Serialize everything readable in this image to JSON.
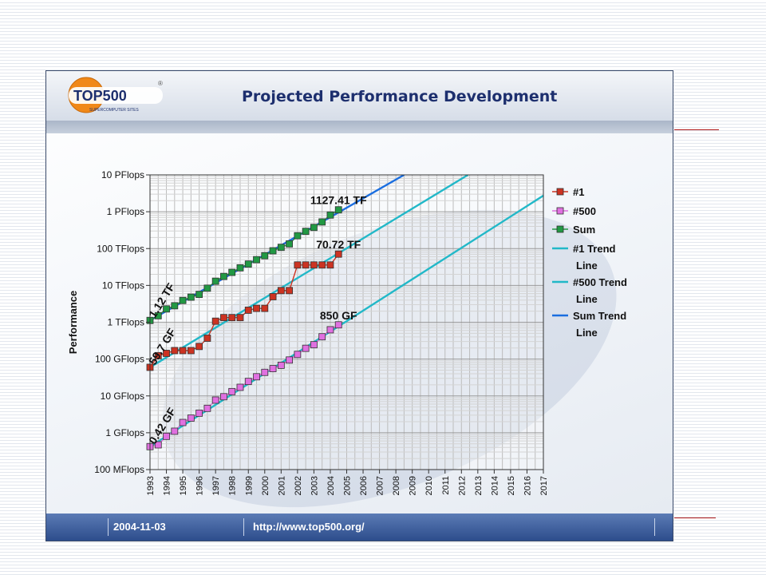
{
  "header": {
    "title": "Projected Performance Development",
    "logo_text": "TOP500",
    "logo_subtext": "SUPERCOMPUTER SITES",
    "logo_mark": "®"
  },
  "footer": {
    "date": "2004-11-03",
    "url": "http://www.top500.org/"
  },
  "colors": {
    "n1": "#cc3322",
    "n500": "#e070e0",
    "sum": "#229944",
    "trend_n1": "#22b8c8",
    "trend_n500": "#22b8c8",
    "trend_sum": "#1a6ee0",
    "logo_orange": "#f08818",
    "logo_ink": "#1d2f6e"
  },
  "chart_data": {
    "type": "line",
    "title": "",
    "xlabel": "",
    "ylabel": "Performance",
    "y_scale": "log",
    "ylim_gflops": [
      0.1,
      10000000
    ],
    "xlim": [
      1993,
      2017
    ],
    "y_ticks": [
      {
        "value_gflops": 10000000,
        "label": "10 PFlops"
      },
      {
        "value_gflops": 1000000,
        "label": "1 PFlops"
      },
      {
        "value_gflops": 100000,
        "label": "100 TFlops"
      },
      {
        "value_gflops": 10000,
        "label": "10 TFlops"
      },
      {
        "value_gflops": 1000,
        "label": "1 TFlops"
      },
      {
        "value_gflops": 100,
        "label": "100 GFlops"
      },
      {
        "value_gflops": 10,
        "label": "10 GFlops"
      },
      {
        "value_gflops": 1,
        "label": "1 GFlops"
      },
      {
        "value_gflops": 0.1,
        "label": "100 MFlops"
      }
    ],
    "x_ticks": [
      "1993",
      "1994",
      "1995",
      "1996",
      "1997",
      "1998",
      "1999",
      "2000",
      "2001",
      "2002",
      "2003",
      "2004",
      "2005",
      "2006",
      "2007",
      "2008",
      "2009",
      "2010",
      "2011",
      "2012",
      "2013",
      "2014",
      "2015",
      "2016",
      "2017"
    ],
    "grid": true,
    "legend_placement": "right",
    "legend": [
      "#1",
      "#500",
      "Sum",
      "#1 Trend Line",
      "#500 Trend Line",
      "Sum Trend Line"
    ],
    "series": [
      {
        "name": "#1",
        "color_key": "n1",
        "x": [
          1993,
          1993.5,
          1994,
          1994.5,
          1995,
          1995.5,
          1996,
          1996.5,
          1997,
          1997.5,
          1998,
          1998.5,
          1999,
          1999.5,
          2000,
          2000.5,
          2001,
          2001.5,
          2002,
          2002.5,
          2003,
          2003.5,
          2004,
          2004.5
        ],
        "gflops": [
          59.7,
          124,
          143,
          170,
          170,
          170,
          220,
          368,
          1068,
          1338,
          1338,
          1338,
          2121,
          2379,
          2379,
          4938,
          7226,
          7226,
          35860,
          35860,
          35860,
          35860,
          35860,
          70720
        ]
      },
      {
        "name": "#500",
        "color_key": "n500",
        "x": [
          1993,
          1993.5,
          1994,
          1994.5,
          1995,
          1995.5,
          1996,
          1996.5,
          1997,
          1997.5,
          1998,
          1998.5,
          1999,
          1999.5,
          2000,
          2000.5,
          2001,
          2001.5,
          2002,
          2002.5,
          2003,
          2003.5,
          2004,
          2004.5
        ],
        "gflops": [
          0.42,
          0.47,
          0.8,
          1.1,
          1.9,
          2.5,
          3.4,
          4.6,
          7.7,
          9.5,
          13.1,
          17.1,
          24.7,
          33.1,
          43.6,
          55.1,
          67.8,
          94.3,
          134,
          196,
          245,
          403,
          624,
          850
        ]
      },
      {
        "name": "Sum",
        "color_key": "sum",
        "x": [
          1993,
          1993.5,
          1994,
          1994.5,
          1995,
          1995.5,
          1996,
          1996.5,
          1997,
          1997.5,
          1998,
          1998.5,
          1999,
          1999.5,
          2000,
          2000.5,
          2001,
          2001.5,
          2002,
          2002.5,
          2003,
          2003.5,
          2004,
          2004.5
        ],
        "gflops": [
          1120,
          1500,
          2300,
          2800,
          3900,
          4800,
          5700,
          8400,
          13000,
          17500,
          22600,
          30000,
          38000,
          50000,
          64000,
          87000,
          108000,
          134000,
          223000,
          293000,
          375000,
          528000,
          813000,
          1127410
        ]
      }
    ],
    "trend_lines": [
      {
        "name": "#1 Trend Line",
        "color_key": "trend_n1",
        "x": [
          1993,
          2012.4
        ],
        "gflops": [
          59.7,
          10000000
        ]
      },
      {
        "name": "#500 Trend Line",
        "color_key": "trend_n500",
        "x": [
          1993,
          2017
        ],
        "gflops": [
          0.42,
          2740000
        ]
      },
      {
        "name": "Sum Trend Line",
        "color_key": "trend_sum",
        "x": [
          1993,
          2008.5
        ],
        "gflops": [
          1120,
          10000000
        ]
      }
    ],
    "annotations": [
      {
        "text": "1127.41 TF",
        "x": 2004.5,
        "gflops": 1127410,
        "style": "horizontal"
      },
      {
        "text": "70.72 TF",
        "x": 2004.5,
        "gflops": 70720,
        "style": "horizontal"
      },
      {
        "text": "850 GF",
        "x": 2004.5,
        "gflops": 850,
        "style": "horizontal"
      },
      {
        "text": "1.12 TF",
        "x": 1993,
        "gflops": 1120,
        "style": "rotated"
      },
      {
        "text": "59.7 GF",
        "x": 1993,
        "gflops": 59.7,
        "style": "rotated"
      },
      {
        "text": "0.42 GF",
        "x": 1993,
        "gflops": 0.42,
        "style": "rotated"
      }
    ]
  }
}
